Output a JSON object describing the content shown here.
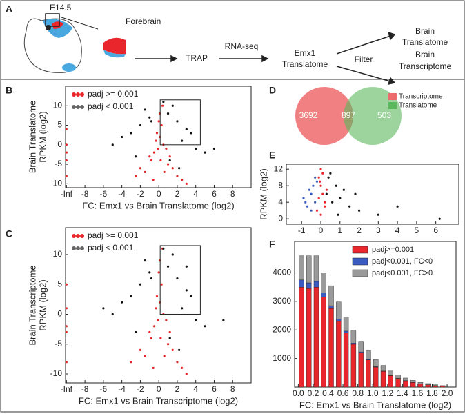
{
  "panel_labels": [
    "A",
    "B",
    "C",
    "D",
    "E",
    "F"
  ],
  "diagram": {
    "stage": "E14.5",
    "forebrain": "Forebrain",
    "step1": "TRAP",
    "step2": "RNA-seq",
    "result": [
      "Emx1",
      "Translatome"
    ],
    "filter": "Filter",
    "out1": [
      "Brain",
      "Translatome"
    ],
    "out2": [
      "Brain",
      "Transcriptome"
    ]
  },
  "chart_data": [
    {
      "type": "scatter",
      "xlabel": "FC: Emx1 vs Brain Translatome (log2)",
      "ylabel": [
        "Brain Translatome",
        "RPKM (log2)"
      ],
      "xlim": [
        -10.1,
        10
      ],
      "ylim": [
        -11,
        15
      ],
      "xticks": [
        {
          "value": -10,
          "label": "-Inf"
        },
        -8,
        -6,
        -4,
        -2,
        0,
        2,
        4,
        6,
        8
      ],
      "yticks": [
        -10,
        -5,
        0,
        5,
        10
      ],
      "series": [
        {
          "name": "padj >= 0.001",
          "color": "#e8262b",
          "x": [
            0.1,
            0.3,
            -0.2,
            0.5,
            -0.5,
            0.2,
            1.0,
            -1.0,
            1.5,
            -1.5,
            2.0,
            -2.0,
            0.4,
            -0.3,
            0.8,
            -0.8,
            2.5,
            -2.5,
            3.0,
            0.0,
            0.1,
            -0.1,
            0.6,
            -0.6,
            1.2,
            -10,
            -10,
            -10,
            -10,
            -10
          ],
          "y": [
            8,
            5,
            3,
            0,
            -2,
            -4,
            -5,
            -3,
            -6,
            -7,
            -8,
            -6,
            10,
            1,
            -1,
            -4,
            -9,
            -8,
            -10,
            6,
            2,
            -1,
            -7,
            -9,
            -3,
            4,
            0,
            -4,
            -8,
            -2
          ]
        },
        {
          "name": "padj < 0.001",
          "color": "#111111",
          "x": [
            1,
            2,
            3,
            -1,
            -2,
            -3,
            -4,
            1.5,
            2.5,
            -1.5,
            0.5,
            4,
            -5,
            5,
            3.5,
            -2.5,
            1.2,
            -0.8,
            2.2,
            6
          ],
          "y": [
            8,
            6,
            4,
            7,
            5,
            3,
            2,
            10,
            1,
            9,
            11,
            -1,
            0,
            -2,
            3,
            -3,
            -4,
            6,
            -6,
            -1
          ]
        }
      ]
    },
    {
      "type": "scatter",
      "xlabel": "FC: Emx1 vs Brain Transcriptome (log2)",
      "ylabel": [
        "Brain Transcriptome",
        "RPKM (log2)"
      ],
      "xlim": [
        -10.1,
        10
      ],
      "ylim": [
        -11.5,
        14.5
      ],
      "xticks": [
        {
          "value": -10,
          "label": "-Inf"
        },
        -8,
        -6,
        -4,
        -2,
        0,
        2,
        4,
        6,
        8
      ],
      "yticks": [
        -10,
        -5,
        0,
        5,
        10
      ],
      "series": [
        {
          "name": "padj >= 0.001",
          "color": "#e8262b",
          "x": [
            0.1,
            0.3,
            -0.2,
            0.5,
            -0.5,
            0.2,
            1.0,
            -1.0,
            1.5,
            -1.5,
            2.0,
            -2.0,
            0.4,
            -0.3,
            0.8,
            -0.8,
            2.5,
            -3.0,
            3.0,
            0.0,
            0.1,
            -0.1,
            0.6,
            -0.6,
            1.2,
            -10,
            -10,
            -10,
            -10,
            -10
          ],
          "y": [
            9,
            5,
            3,
            0,
            -2,
            -4,
            -5,
            -3,
            -6,
            -7,
            -8,
            -6,
            11,
            1,
            -1,
            -4,
            -9,
            -8,
            -10,
            7,
            2,
            -1,
            -7,
            -9,
            -3,
            5,
            1,
            -3,
            -8,
            -2
          ]
        },
        {
          "name": "padj < 0.001",
          "color": "#111111",
          "x": [
            1,
            2,
            3,
            -1,
            -2,
            -3,
            -4,
            1.5,
            2.5,
            -1.5,
            0.5,
            4,
            -5,
            5,
            3.5,
            -2.5,
            1.2,
            -0.8,
            2.2,
            7,
            -6,
            3
          ],
          "y": [
            8,
            6,
            4,
            7,
            5,
            3,
            2,
            10,
            1,
            9,
            11,
            -1,
            0,
            -2,
            3,
            -3,
            -4,
            6,
            -6,
            -1,
            1,
            8
          ]
        }
      ]
    },
    {
      "type": "venn",
      "values": [
        3692,
        897,
        503
      ],
      "series": [
        {
          "name": "Transcriptome",
          "color": "#ee6a6c"
        },
        {
          "name": "Translatome",
          "color": "#5cb85c"
        }
      ]
    },
    {
      "type": "scatter",
      "ylabel": [
        "RPKM (log2)"
      ],
      "xlim": [
        -1.8,
        7.2
      ],
      "ylim": [
        -1.3,
        13.2
      ],
      "xticks": [
        -1,
        0,
        1,
        2,
        3,
        4,
        5,
        6
      ],
      "yticks": [
        0,
        4,
        8,
        12
      ],
      "series": [
        {
          "color": "#3a5bbf",
          "x": [
            -0.9,
            -0.7,
            -0.5,
            -0.4,
            -0.3,
            -0.6,
            -0.2,
            -0.8,
            -0.5,
            -0.3
          ],
          "y": [
            5,
            3,
            6,
            8,
            4,
            7,
            9,
            4,
            2,
            10
          ]
        },
        {
          "color": "#111111",
          "x": [
            0.3,
            0.6,
            1.0,
            1.5,
            0.8,
            2.0,
            1.2,
            0.4,
            3.0,
            0.5,
            6.2,
            4,
            0.9,
            1.8
          ],
          "y": [
            6,
            4,
            5,
            3,
            8,
            2,
            7,
            10,
            1,
            11,
            0,
            3,
            1,
            6
          ]
        },
        {
          "color": "#e8262b",
          "x": [
            -0.2,
            -0.1,
            0,
            0.1,
            0.2,
            0.3,
            0,
            -0.1,
            0.1,
            0.2,
            0,
            -0.05
          ],
          "y": [
            2,
            5,
            8,
            11,
            4,
            7,
            1,
            10,
            6,
            3,
            12,
            9
          ]
        }
      ]
    },
    {
      "type": "histogram",
      "xlabel": "FC: Emx1 vs Brain Translatome (log2)",
      "xlim": [
        -0.05,
        2.12
      ],
      "ylim": [
        0,
        5100
      ],
      "xticks": [
        {
          "value": 0,
          "label": "0.0"
        },
        0.2,
        0.4,
        0.6,
        0.8,
        {
          "value": 1,
          "label": "1.0"
        },
        1.2,
        1.4,
        1.6,
        1.8,
        {
          "value": 2,
          "label": "2.0"
        }
      ],
      "yticks": [
        1000,
        2000,
        3000,
        4000
      ],
      "bins": [
        0,
        0.1,
        0.2,
        0.3,
        0.4,
        0.5,
        0.6,
        0.7,
        0.8,
        0.9,
        1,
        1.1,
        1.2,
        1.3,
        1.4,
        1.5,
        1.6,
        1.7,
        1.8,
        1.9,
        2
      ],
      "series": [
        {
          "name": "padj>=0.001",
          "color": "#e8262b",
          "values": [
            3500,
            3450,
            3500,
            3150,
            2750,
            2300,
            1900,
            1500,
            1200,
            950,
            700,
            550,
            400,
            300,
            220,
            160,
            110,
            80,
            50,
            30
          ]
        },
        {
          "name": "padj<0.001, FC<0",
          "color": "#3a5bbf",
          "values": [
            250,
            200,
            200,
            150,
            100,
            80,
            60,
            40,
            30,
            20,
            15,
            10,
            10,
            5,
            5,
            3,
            2,
            2,
            1,
            1
          ]
        },
        {
          "name": "padj<0.001, FC>0",
          "color": "#9a9a9a",
          "values": [
            850,
            950,
            900,
            700,
            700,
            600,
            500,
            450,
            350,
            300,
            250,
            200,
            150,
            120,
            90,
            70,
            50,
            40,
            30,
            20
          ]
        }
      ]
    }
  ]
}
